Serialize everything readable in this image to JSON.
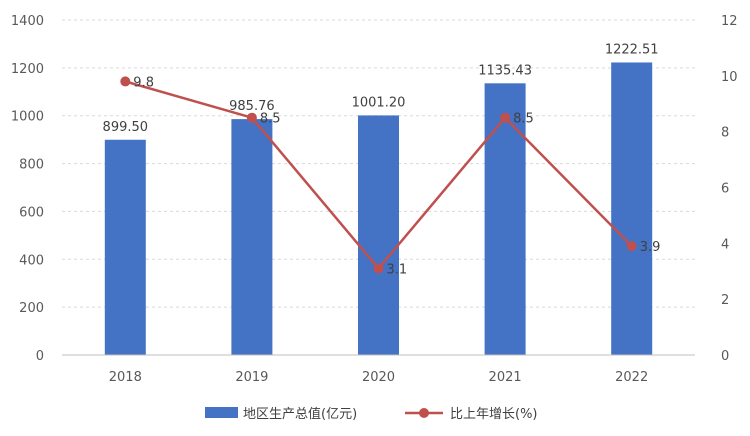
{
  "chart_data": {
    "type": "bar",
    "categories": [
      "2018",
      "2019",
      "2020",
      "2021",
      "2022"
    ],
    "series": [
      {
        "name": "地区生产总值(亿元)",
        "type": "bar",
        "axis": "left",
        "values": [
          899.5,
          985.76,
          1001.2,
          1135.43,
          1222.51
        ],
        "labels": [
          "899.50",
          "985.76",
          "1001.20",
          "1135.43",
          "1222.51"
        ],
        "color": "#4472c4"
      },
      {
        "name": "比上年增长(%)",
        "type": "line",
        "axis": "right",
        "values": [
          9.8,
          8.5,
          3.1,
          8.5,
          3.9
        ],
        "labels": [
          "9.8",
          "8.5",
          "3.1",
          "8.5",
          "3.9"
        ],
        "color": "#c0504d"
      }
    ],
    "y_left": {
      "lim": [
        0,
        1400
      ],
      "ticks": [
        "0",
        "200",
        "400",
        "600",
        "800",
        "1000",
        "1200",
        "1400"
      ]
    },
    "y_right": {
      "lim": [
        0,
        12
      ],
      "ticks": [
        "0",
        "2",
        "4",
        "6",
        "8",
        "10",
        "12"
      ]
    },
    "grid": true,
    "legend_position": "bottom"
  }
}
